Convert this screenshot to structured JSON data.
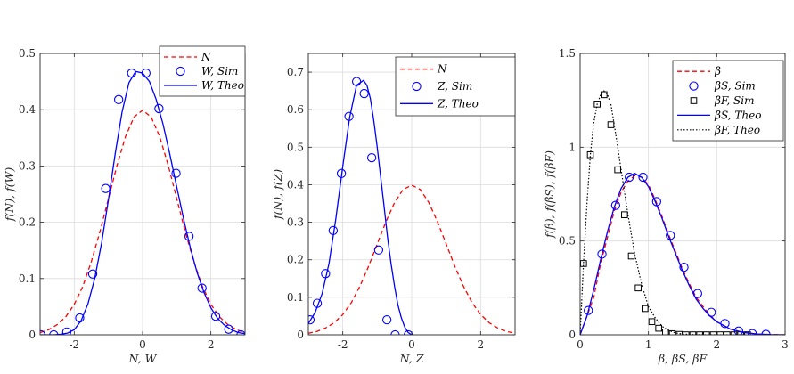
{
  "chart_data": [
    {
      "type": "line",
      "xlabel": "N, W",
      "ylabel": "f(N), f(W)",
      "xlim": [
        -3,
        3
      ],
      "ylim": [
        0,
        0.5
      ],
      "xticks": [
        -2,
        0,
        2
      ],
      "xtick_labels": [
        "-2",
        "0",
        "2"
      ],
      "yticks": [
        0,
        0.1,
        0.2,
        0.3,
        0.4,
        0.5
      ],
      "ytick_labels": [
        "0",
        "0.1",
        "0.2",
        "0.3",
        "0.4",
        "0.5"
      ],
      "grid": true,
      "legend_position": "top-right",
      "series": [
        {
          "name": "N",
          "style": "dashed",
          "color": "#ff0000",
          "x": [
            -3,
            -2.75,
            -2.5,
            -2.25,
            -2,
            -1.75,
            -1.5,
            -1.25,
            -1,
            -0.75,
            -0.5,
            -0.25,
            0,
            0.25,
            0.5,
            0.75,
            1,
            1.25,
            1.5,
            1.75,
            2,
            2.25,
            2.5,
            2.75,
            3
          ],
          "y": [
            0.004,
            0.009,
            0.018,
            0.032,
            0.054,
            0.086,
            0.13,
            0.183,
            0.242,
            0.301,
            0.352,
            0.387,
            0.399,
            0.387,
            0.352,
            0.301,
            0.242,
            0.183,
            0.13,
            0.086,
            0.054,
            0.032,
            0.018,
            0.009,
            0.004
          ]
        },
        {
          "name": "W, Sim",
          "style": "circles",
          "color": "#0000ff",
          "x": [
            -2.98,
            -2.6,
            -2.22,
            -1.84,
            -1.46,
            -1.08,
            -0.7,
            -0.32,
            0.1,
            0.48,
            0.98,
            1.36,
            1.74,
            2.14,
            2.52,
            2.88
          ],
          "y": [
            0.0,
            0.0,
            0.005,
            0.03,
            0.108,
            0.26,
            0.418,
            0.465,
            0.465,
            0.402,
            0.287,
            0.175,
            0.083,
            0.033,
            0.01,
            0.0
          ]
        },
        {
          "name": "W, Theo",
          "style": "solid",
          "color": "#0000ff",
          "x": [
            -3,
            -2.8,
            -2.6,
            -2.4,
            -2.2,
            -2,
            -1.8,
            -1.6,
            -1.4,
            -1.2,
            -1,
            -0.8,
            -0.6,
            -0.4,
            -0.2,
            0,
            0.2,
            0.4,
            0.6,
            0.8,
            1,
            1.2,
            1.4,
            1.6,
            1.8,
            2,
            2.2,
            2.4,
            2.6,
            2.8,
            3
          ],
          "y": [
            0.0,
            0.0,
            0.0,
            0.001,
            0.003,
            0.009,
            0.025,
            0.055,
            0.1,
            0.163,
            0.24,
            0.322,
            0.396,
            0.448,
            0.468,
            0.465,
            0.45,
            0.418,
            0.374,
            0.32,
            0.263,
            0.206,
            0.154,
            0.11,
            0.075,
            0.048,
            0.029,
            0.017,
            0.009,
            0.004,
            0.002
          ]
        }
      ]
    },
    {
      "type": "line",
      "xlabel": "N, Z",
      "ylabel": "f(N), f(Z)",
      "xlim": [
        -3,
        3
      ],
      "ylim": [
        0,
        0.75
      ],
      "xticks": [
        -2,
        0,
        2
      ],
      "xtick_labels": [
        "-2",
        "0",
        "2"
      ],
      "yticks": [
        0,
        0.1,
        0.2,
        0.3,
        0.4,
        0.5,
        0.6,
        0.7
      ],
      "ytick_labels": [
        "0",
        "0.1",
        "0.2",
        "0.3",
        "0.4",
        "0.5",
        "0.6",
        "0.7"
      ],
      "grid": true,
      "legend_position": "top-right",
      "series": [
        {
          "name": "N",
          "style": "dashed",
          "color": "#ff0000",
          "x": [
            -3,
            -2.75,
            -2.5,
            -2.25,
            -2,
            -1.75,
            -1.5,
            -1.25,
            -1,
            -0.75,
            -0.5,
            -0.25,
            0,
            0.25,
            0.5,
            0.75,
            1,
            1.25,
            1.5,
            1.75,
            2,
            2.25,
            2.5,
            2.75,
            3
          ],
          "y": [
            0.004,
            0.009,
            0.018,
            0.032,
            0.054,
            0.086,
            0.13,
            0.183,
            0.242,
            0.301,
            0.352,
            0.387,
            0.399,
            0.387,
            0.352,
            0.301,
            0.242,
            0.183,
            0.13,
            0.086,
            0.054,
            0.032,
            0.018,
            0.009,
            0.004
          ]
        },
        {
          "name": "Z, Sim",
          "style": "circles",
          "color": "#0000ff",
          "x": [
            -2.95,
            -2.74,
            -2.5,
            -2.28,
            -2.04,
            -1.82,
            -1.6,
            -1.38,
            -1.16,
            -0.96,
            -0.72,
            -0.48,
            -0.1
          ],
          "y": [
            0.04,
            0.084,
            0.163,
            0.278,
            0.43,
            0.582,
            0.675,
            0.643,
            0.472,
            0.226,
            0.04,
            0.0,
            0.0
          ]
        },
        {
          "name": "Z, Theo",
          "style": "solid",
          "color": "#0000ff",
          "x": [
            -3,
            -2.8,
            -2.6,
            -2.4,
            -2.2,
            -2,
            -1.8,
            -1.6,
            -1.4,
            -1.3,
            -1.2,
            -1.1,
            -1.0,
            -0.9,
            -0.8,
            -0.7,
            -0.6,
            -0.5,
            -0.4,
            -0.3,
            -0.2,
            -0.1,
            0
          ],
          "y": [
            0.03,
            0.06,
            0.11,
            0.19,
            0.31,
            0.45,
            0.58,
            0.665,
            0.678,
            0.665,
            0.63,
            0.57,
            0.5,
            0.42,
            0.34,
            0.26,
            0.19,
            0.13,
            0.08,
            0.045,
            0.02,
            0.006,
            0.0
          ]
        }
      ]
    },
    {
      "type": "line",
      "xlabel": "β, βS, βF",
      "ylabel": "f(β), f(βS), f(βF)",
      "xlim": [
        0,
        3
      ],
      "ylim": [
        0,
        1.5
      ],
      "xticks": [
        0,
        1,
        2,
        3
      ],
      "xtick_labels": [
        "0",
        "1",
        "2",
        "3"
      ],
      "yticks": [
        0,
        0.5,
        1,
        1.5
      ],
      "ytick_labels": [
        "0",
        "0.5",
        "1",
        "1.5"
      ],
      "grid": true,
      "legend_position": "top-right",
      "series": [
        {
          "name": "β",
          "style": "dashed",
          "color": "#ff0000",
          "x": [
            0,
            0.1,
            0.2,
            0.3,
            0.4,
            0.5,
            0.6,
            0.7,
            0.8,
            0.9,
            1.0,
            1.1,
            1.2,
            1.3,
            1.4,
            1.5,
            1.6,
            1.7,
            1.8,
            1.9,
            2.0,
            2.2,
            2.4,
            2.6,
            2.8,
            3.0
          ],
          "y": [
            0,
            0.1,
            0.2,
            0.38,
            0.52,
            0.66,
            0.76,
            0.82,
            0.848,
            0.84,
            0.8,
            0.72,
            0.63,
            0.53,
            0.44,
            0.35,
            0.27,
            0.2,
            0.15,
            0.105,
            0.07,
            0.03,
            0.012,
            0.004,
            0.001,
            0.0
          ]
        },
        {
          "name": "βS, Sim",
          "style": "circles",
          "color": "#0000ff",
          "x": [
            0.12,
            0.32,
            0.52,
            0.72,
            0.92,
            1.12,
            1.32,
            1.52,
            1.72,
            1.92,
            2.12,
            2.32,
            2.52,
            2.72
          ],
          "y": [
            0.13,
            0.43,
            0.69,
            0.84,
            0.84,
            0.71,
            0.53,
            0.36,
            0.22,
            0.12,
            0.06,
            0.02,
            0.006,
            0.002
          ]
        },
        {
          "name": "βF, Sim",
          "style": "squares",
          "color": "#000000",
          "x": [
            0.05,
            0.15,
            0.25,
            0.35,
            0.45,
            0.55,
            0.65,
            0.75,
            0.85,
            0.95,
            1.05,
            1.15,
            1.25,
            1.35,
            1.45,
            1.55,
            1.65,
            1.75,
            1.85,
            1.95,
            2.05,
            2.15,
            2.25,
            2.35,
            2.45
          ],
          "y": [
            0.38,
            0.96,
            1.23,
            1.28,
            1.12,
            0.88,
            0.64,
            0.42,
            0.25,
            0.14,
            0.07,
            0.035,
            0.015,
            0.006,
            0.002,
            0.0,
            0.0,
            0.0,
            0.0,
            0.0,
            0.0,
            0.0,
            0.0,
            0.0,
            0.0
          ]
        },
        {
          "name": "βS, Theo",
          "style": "solid",
          "color": "#0000ff",
          "x": [
            0,
            0.1,
            0.2,
            0.3,
            0.4,
            0.5,
            0.6,
            0.7,
            0.8,
            0.9,
            1.0,
            1.1,
            1.2,
            1.3,
            1.4,
            1.5,
            1.6,
            1.7,
            1.8,
            1.9,
            2.0,
            2.2,
            2.4,
            2.6,
            2.8,
            3.0
          ],
          "y": [
            0,
            0.1,
            0.24,
            0.4,
            0.55,
            0.68,
            0.78,
            0.84,
            0.86,
            0.84,
            0.79,
            0.71,
            0.62,
            0.52,
            0.43,
            0.34,
            0.26,
            0.19,
            0.14,
            0.1,
            0.07,
            0.03,
            0.012,
            0.004,
            0.001,
            0.0
          ]
        },
        {
          "name": "βF, Theo",
          "style": "dotted",
          "color": "#000000",
          "x": [
            0,
            0.05,
            0.1,
            0.15,
            0.2,
            0.25,
            0.3,
            0.35,
            0.4,
            0.45,
            0.5,
            0.55,
            0.6,
            0.7,
            0.8,
            0.9,
            1.0,
            1.1,
            1.2,
            1.3,
            1.4,
            1.5,
            1.6,
            1.8,
            2.0,
            2.2,
            2.4
          ],
          "y": [
            0,
            0.38,
            0.7,
            0.96,
            1.13,
            1.23,
            1.28,
            1.3,
            1.28,
            1.23,
            1.12,
            1.0,
            0.88,
            0.64,
            0.43,
            0.27,
            0.15,
            0.09,
            0.045,
            0.022,
            0.01,
            0.004,
            0.002,
            0.0,
            0.0,
            0.0,
            0.0
          ]
        }
      ]
    }
  ]
}
